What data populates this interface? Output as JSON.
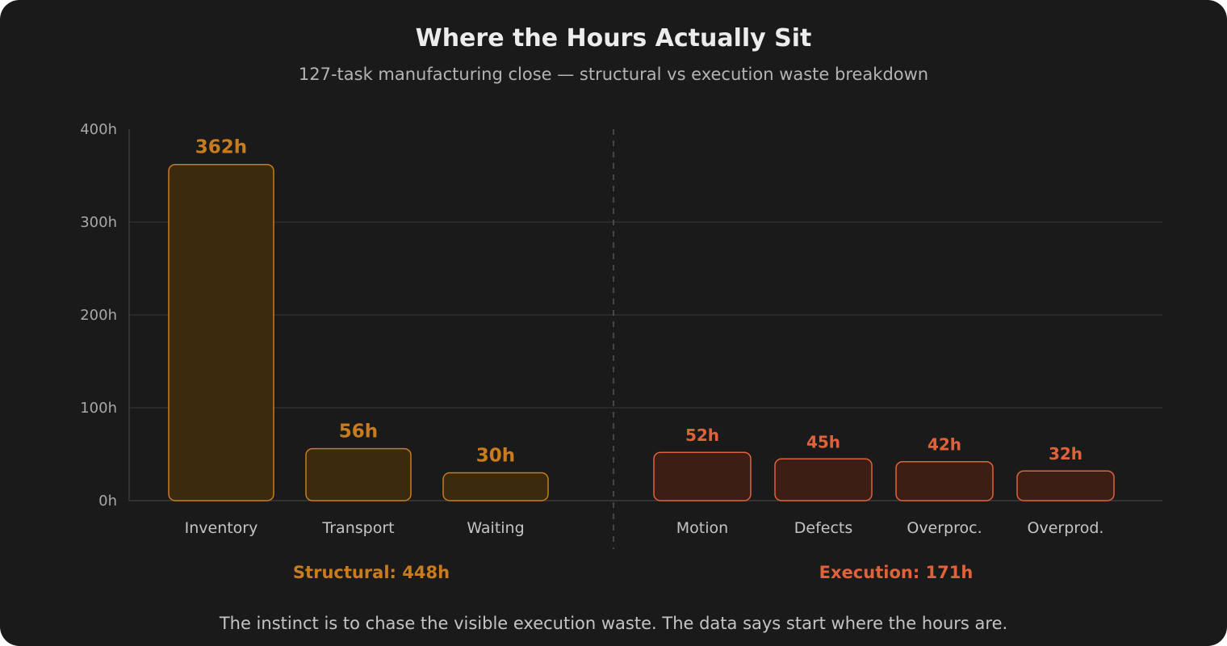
{
  "title": "Where the Hours Actually Sit",
  "subtitle": "127-task manufacturing close — structural vs execution waste breakdown",
  "footnote": "The instinct is to chase the visible execution waste. The data says start where the hours are.",
  "colors": {
    "background": "#1a1a1a",
    "structural_stroke": "#c97c1e",
    "structural_fill": "#3b2a0b",
    "execution_stroke": "#e0623a",
    "execution_fill": "#3d1e14",
    "grid": "#2e2e2e"
  },
  "chart_data": {
    "type": "bar",
    "title": "Where the Hours Actually Sit",
    "subtitle": "127-task manufacturing close — structural vs execution waste breakdown",
    "xlabel": "",
    "ylabel": "",
    "ylim": [
      0,
      400
    ],
    "yticks": [
      0,
      100,
      200,
      300,
      400
    ],
    "ytick_labels": [
      "0h",
      "100h",
      "200h",
      "300h",
      "400h"
    ],
    "grid": true,
    "unit_suffix": "h",
    "groups": [
      {
        "name": "Structural",
        "label": "Structural: 448h",
        "total": 448,
        "categories": [
          "Inventory",
          "Transport",
          "Waiting"
        ],
        "values": [
          362,
          56,
          30
        ],
        "value_labels": [
          "362h",
          "56h",
          "30h"
        ]
      },
      {
        "name": "Execution",
        "label": "Execution: 171h",
        "total": 171,
        "categories": [
          "Motion",
          "Defects",
          "Overproc.",
          "Overprod."
        ],
        "values": [
          52,
          45,
          42,
          32
        ],
        "value_labels": [
          "52h",
          "45h",
          "42h",
          "32h"
        ]
      }
    ]
  }
}
